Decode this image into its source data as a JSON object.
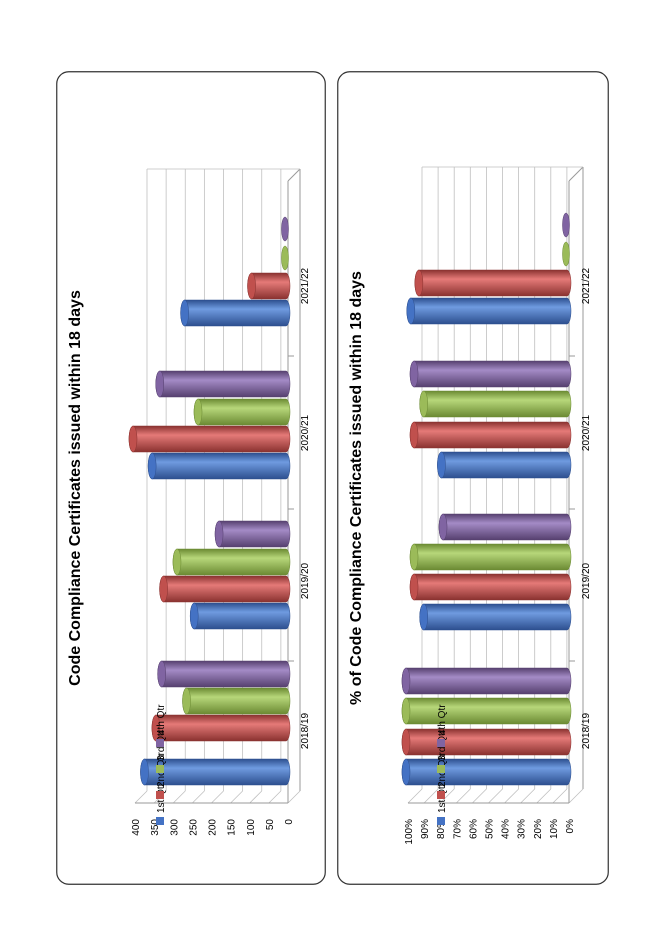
{
  "series_colors": {
    "1st Qtr": {
      "light": "#6f9be0",
      "main": "#4472c4",
      "dark": "#2d4f8f"
    },
    "2nd Qtr": {
      "light": "#e57a78",
      "main": "#c0504d",
      "dark": "#8a3230"
    },
    "3rd Qtr": {
      "light": "#b7d77a",
      "main": "#9bbb59",
      "dark": "#6b8a33"
    },
    "4th Qtr": {
      "light": "#a48bc6",
      "main": "#8064a2",
      "dark": "#56406f"
    }
  },
  "chart_data": [
    {
      "type": "bar",
      "orientation": "3d-cylinder",
      "title": "Code Compliance Certificates issued within 18 days",
      "categories": [
        "2018/19",
        "2019/20",
        "2020/21",
        "2021/22"
      ],
      "series": [
        {
          "name": "1st Qtr",
          "values": [
            370,
            240,
            350,
            265
          ]
        },
        {
          "name": "2nd Qtr",
          "values": [
            340,
            320,
            400,
            90
          ]
        },
        {
          "name": "3rd Qtr",
          "values": [
            260,
            285,
            230,
            0
          ]
        },
        {
          "name": "4th Qtr",
          "values": [
            325,
            175,
            330,
            0
          ]
        }
      ],
      "ylim": [
        0,
        400
      ],
      "yticks": [
        "0",
        "50",
        "100",
        "150",
        "200",
        "250",
        "300",
        "350",
        "400"
      ],
      "grid": true,
      "legend": "right"
    },
    {
      "type": "bar",
      "orientation": "3d-cylinder",
      "title": "% of Code Compliance Certificates issued within 18 days",
      "categories": [
        "2018/19",
        "2019/20",
        "2020/21",
        "2021/22"
      ],
      "series": [
        {
          "name": "1st Qtr",
          "values": [
            1.0,
            0.89,
            0.78,
            0.97
          ]
        },
        {
          "name": "2nd Qtr",
          "values": [
            1.0,
            0.95,
            0.95,
            0.92
          ]
        },
        {
          "name": "3rd Qtr",
          "values": [
            1.0,
            0.95,
            0.89,
            0
          ]
        },
        {
          "name": "4th Qtr",
          "values": [
            1.0,
            0.77,
            0.95,
            0
          ]
        }
      ],
      "ylim": [
        0,
        1
      ],
      "yticks": [
        "0%",
        "10%",
        "20%",
        "30%",
        "40%",
        "50%",
        "60%",
        "70%",
        "80%",
        "90%",
        "100%"
      ],
      "grid": true,
      "legend": "right"
    }
  ]
}
